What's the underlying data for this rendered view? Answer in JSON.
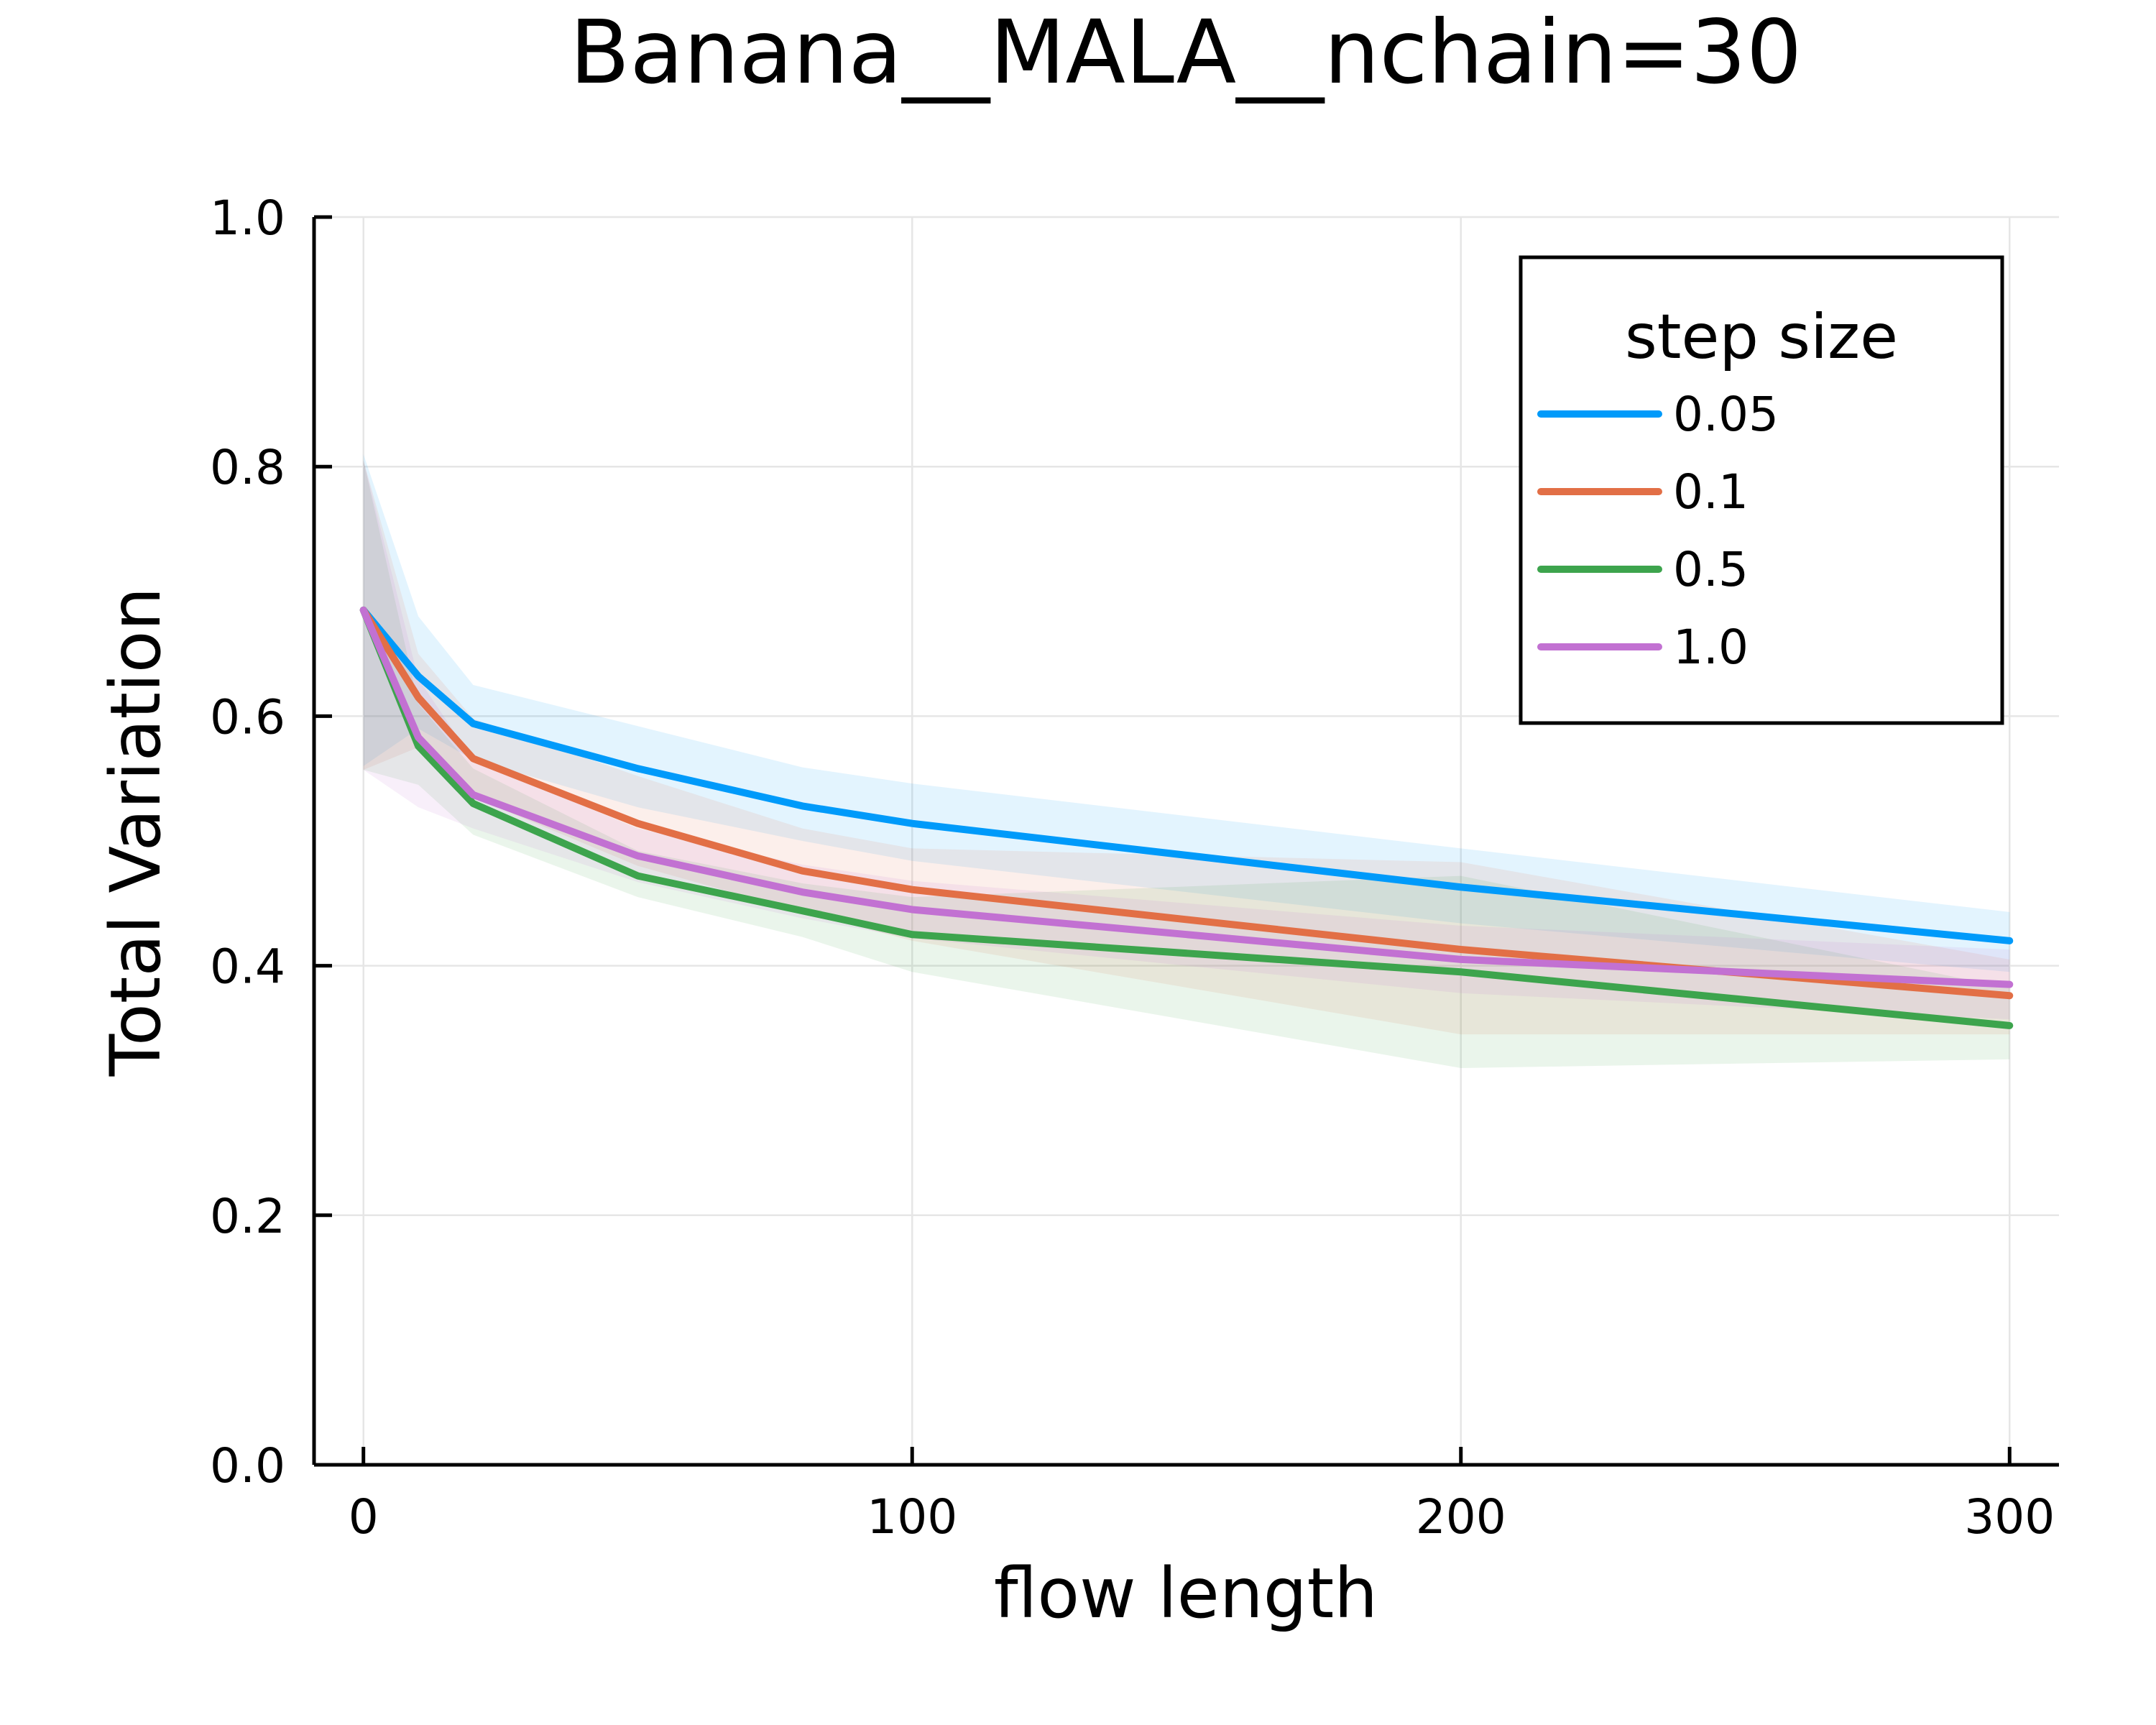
{
  "chart_data": {
    "type": "line",
    "title": "Banana__MALA__nchain=30",
    "xlabel": "flow length",
    "ylabel": "Total Variation",
    "xlim": [
      -9,
      309
    ],
    "ylim": [
      0.0,
      1.0
    ],
    "x_ticks": [
      0,
      100,
      200,
      300
    ],
    "x_tick_labels": [
      "0",
      "100",
      "200",
      "300"
    ],
    "y_ticks": [
      0.0,
      0.2,
      0.4,
      0.6,
      0.8,
      1.0
    ],
    "y_tick_labels": [
      "0.0",
      "0.2",
      "0.4",
      "0.6",
      "0.8",
      "1.0"
    ],
    "grid": true,
    "legend": {
      "title": "step size",
      "position": "top-right"
    },
    "x": [
      0,
      10,
      20,
      50,
      80,
      100,
      200,
      300
    ],
    "series": [
      {
        "name": "0.05",
        "color": "#009AFA",
        "values": [
          0.685,
          0.632,
          0.594,
          0.558,
          0.528,
          0.514,
          0.463,
          0.42
        ],
        "lower": [
          0.56,
          0.59,
          0.565,
          0.527,
          0.5,
          0.484,
          0.434,
          0.395
        ],
        "upper": [
          0.81,
          0.68,
          0.625,
          0.592,
          0.559,
          0.546,
          0.494,
          0.443
        ]
      },
      {
        "name": "0.1",
        "color": "#E26F46",
        "values": [
          0.685,
          0.615,
          0.566,
          0.514,
          0.476,
          0.461,
          0.413,
          0.376
        ],
        "lower": [
          0.557,
          0.575,
          0.535,
          0.48,
          0.443,
          0.42,
          0.345,
          0.345
        ],
        "upper": [
          0.805,
          0.65,
          0.598,
          0.552,
          0.51,
          0.494,
          0.483,
          0.405
        ]
      },
      {
        "name": "0.5",
        "color": "#3DA44D",
        "values": [
          0.685,
          0.576,
          0.53,
          0.472,
          0.444,
          0.425,
          0.395,
          0.352
        ],
        "lower": [
          0.557,
          0.545,
          0.505,
          0.455,
          0.423,
          0.395,
          0.318,
          0.325
        ],
        "upper": [
          0.805,
          0.61,
          0.558,
          0.492,
          0.466,
          0.455,
          0.472,
          0.382
        ]
      },
      {
        "name": "1.0",
        "color": "#C271D2",
        "values": [
          0.685,
          0.583,
          0.537,
          0.488,
          0.459,
          0.445,
          0.405,
          0.385
        ],
        "lower": [
          0.557,
          0.527,
          0.51,
          0.467,
          0.438,
          0.422,
          0.378,
          0.357
        ],
        "upper": [
          0.805,
          0.63,
          0.565,
          0.51,
          0.481,
          0.468,
          0.432,
          0.413
        ]
      }
    ]
  }
}
